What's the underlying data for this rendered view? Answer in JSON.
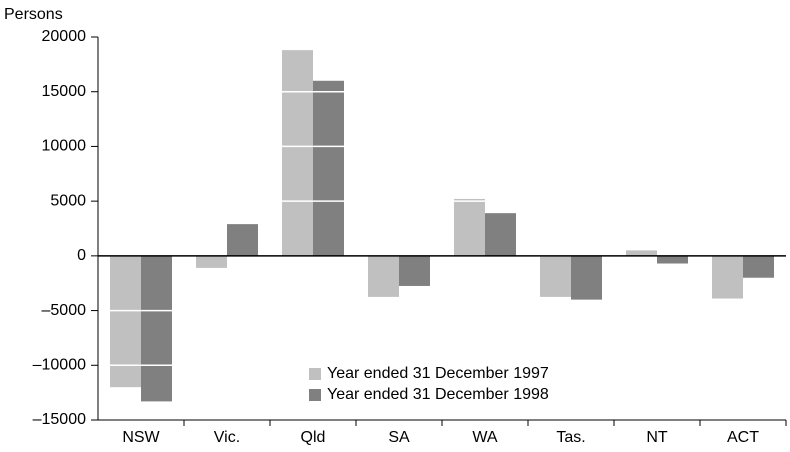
{
  "chart_data": {
    "type": "bar",
    "y_label": "Persons",
    "categories": [
      "NSW",
      "Vic.",
      "Qld",
      "SA",
      "WA",
      "Tas.",
      "NT",
      "ACT"
    ],
    "series": [
      {
        "name": "Year ended 31 December 1997",
        "color": "#c0c0c0",
        "values": [
          -12000,
          -1100,
          18800,
          -3750,
          5200,
          -3750,
          500,
          -3900
        ]
      },
      {
        "name": "Year ended 31 December 1998",
        "color": "#808080",
        "values": [
          -13300,
          2900,
          16000,
          -2750,
          3900,
          -4000,
          -700,
          -2000
        ]
      }
    ],
    "ylim": [
      -15000,
      20000
    ],
    "yticks": [
      {
        "value": -15000,
        "label": "–15000"
      },
      {
        "value": -10000,
        "label": "–10000"
      },
      {
        "value": -5000,
        "label": "–5000"
      },
      0,
      5000,
      10000,
      15000,
      20000
    ],
    "grid": true,
    "grid_color": "#ffffff"
  }
}
